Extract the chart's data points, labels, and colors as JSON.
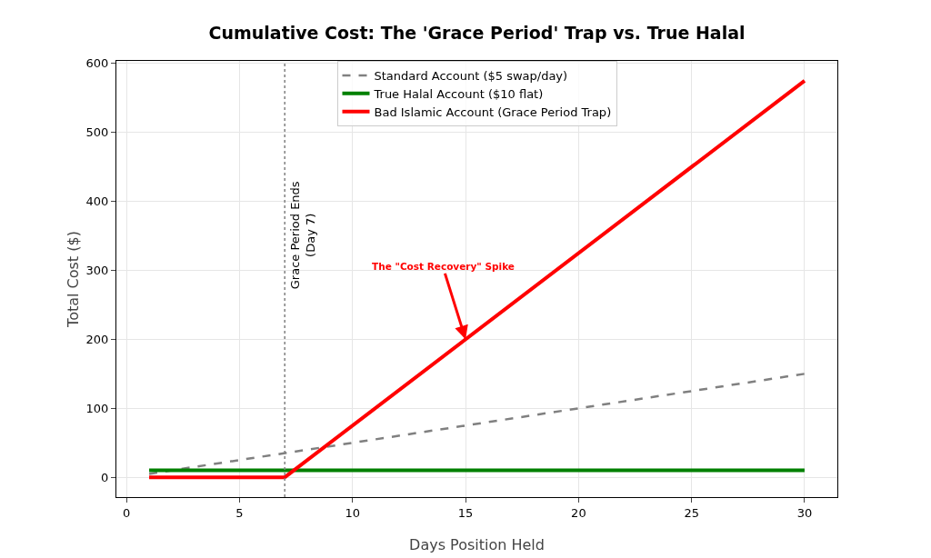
{
  "chart_data": {
    "type": "line",
    "title": "Cumulative Cost: The 'Grace Period' Trap vs. True Halal",
    "xlabel": "Days Position Held",
    "ylabel": "Total Cost ($)",
    "series": [
      {
        "name": "Standard Account ($5 swap/day)",
        "color": "#808080",
        "line_style": "dashed",
        "x": [
          1,
          30
        ],
        "values": [
          5,
          150
        ]
      },
      {
        "name": "True Halal Account ($10 flat)",
        "color": "#008000",
        "line_style": "solid",
        "x": [
          1,
          30
        ],
        "values": [
          10,
          10
        ]
      },
      {
        "name": "Bad Islamic Account (Grace Period Trap)",
        "color": "#ff0000",
        "line_style": "solid",
        "x": [
          1,
          7,
          30
        ],
        "values": [
          0,
          0,
          575
        ]
      }
    ],
    "xlim": [
      -0.45,
      31.45
    ],
    "xticks": [
      0,
      5,
      10,
      15,
      20,
      25,
      30
    ],
    "ylim": [
      -28.75,
      603.75
    ],
    "yticks": [
      0,
      100,
      200,
      300,
      400,
      500,
      600
    ],
    "ref_lines": [
      {
        "axis": "x",
        "value": 7,
        "label": "Grace Period Ends\n(Day 7)",
        "color": "#808080",
        "line_style": "dotted"
      }
    ],
    "annotations": [
      {
        "text": "The \"Cost Recovery\" Spike",
        "x": 15,
        "y": 200
      }
    ],
    "grid": true,
    "legend": "top",
    "marker": "none"
  }
}
